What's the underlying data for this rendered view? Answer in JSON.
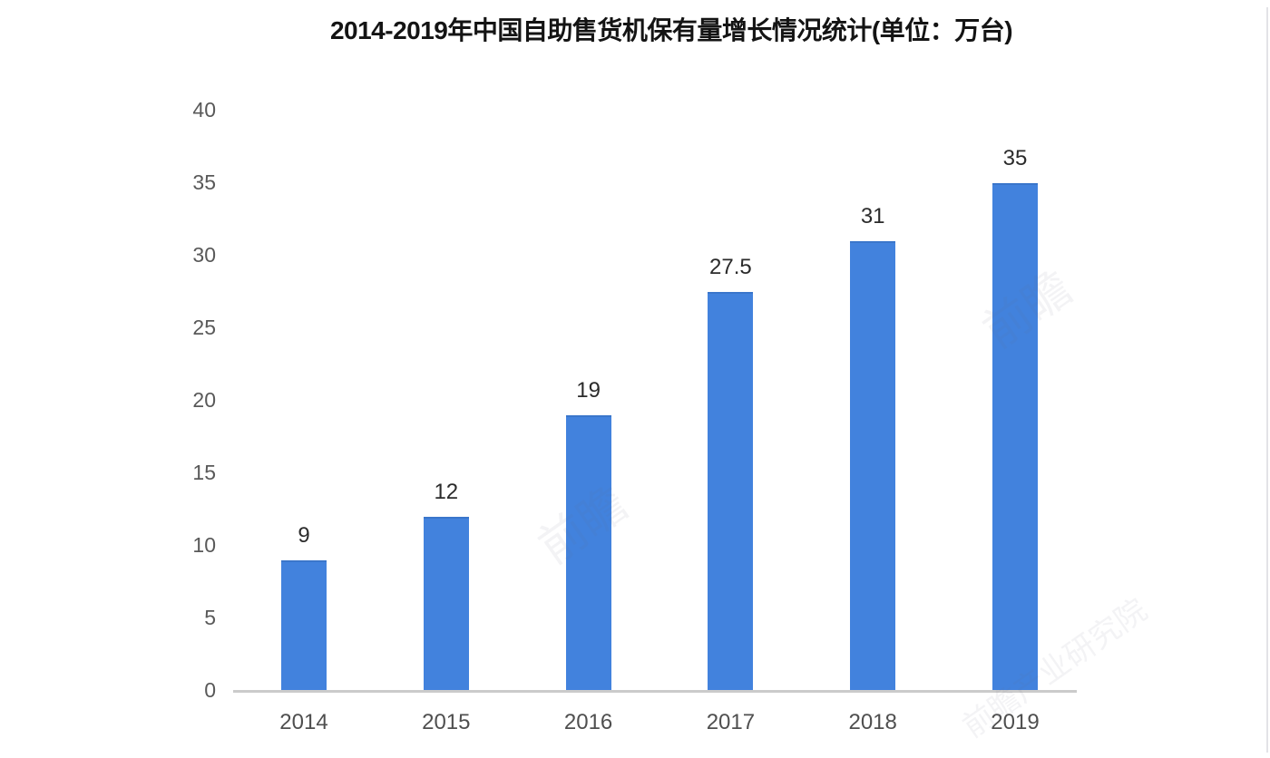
{
  "chart_data": {
    "type": "bar",
    "title": "2014-2019年中国自助售货机保有量增长情况统计(单位：万台)",
    "categories": [
      "2014",
      "2015",
      "2016",
      "2017",
      "2018",
      "2019"
    ],
    "values": [
      9,
      12,
      19,
      27.5,
      31,
      35
    ],
    "value_labels": [
      "9",
      "12",
      "19",
      "27.5",
      "31",
      "35"
    ],
    "yticks": [
      0,
      5,
      10,
      15,
      20,
      25,
      30,
      35,
      40
    ],
    "ylim": [
      0,
      40
    ],
    "xlabel": "",
    "ylabel": "",
    "grid": false,
    "legend": null,
    "bar_color": "#4282dd",
    "bar_top_edge_color": "#3a76cb",
    "axis_line_color": "#cbcbcb",
    "title_color": "#141414",
    "tick_label_color": "#595959",
    "value_label_color": "#2b2b2b"
  },
  "watermarks": [
    {
      "text": "前瞻"
    },
    {
      "text": "前瞻"
    },
    {
      "text": "前瞻产业研究院"
    }
  ]
}
